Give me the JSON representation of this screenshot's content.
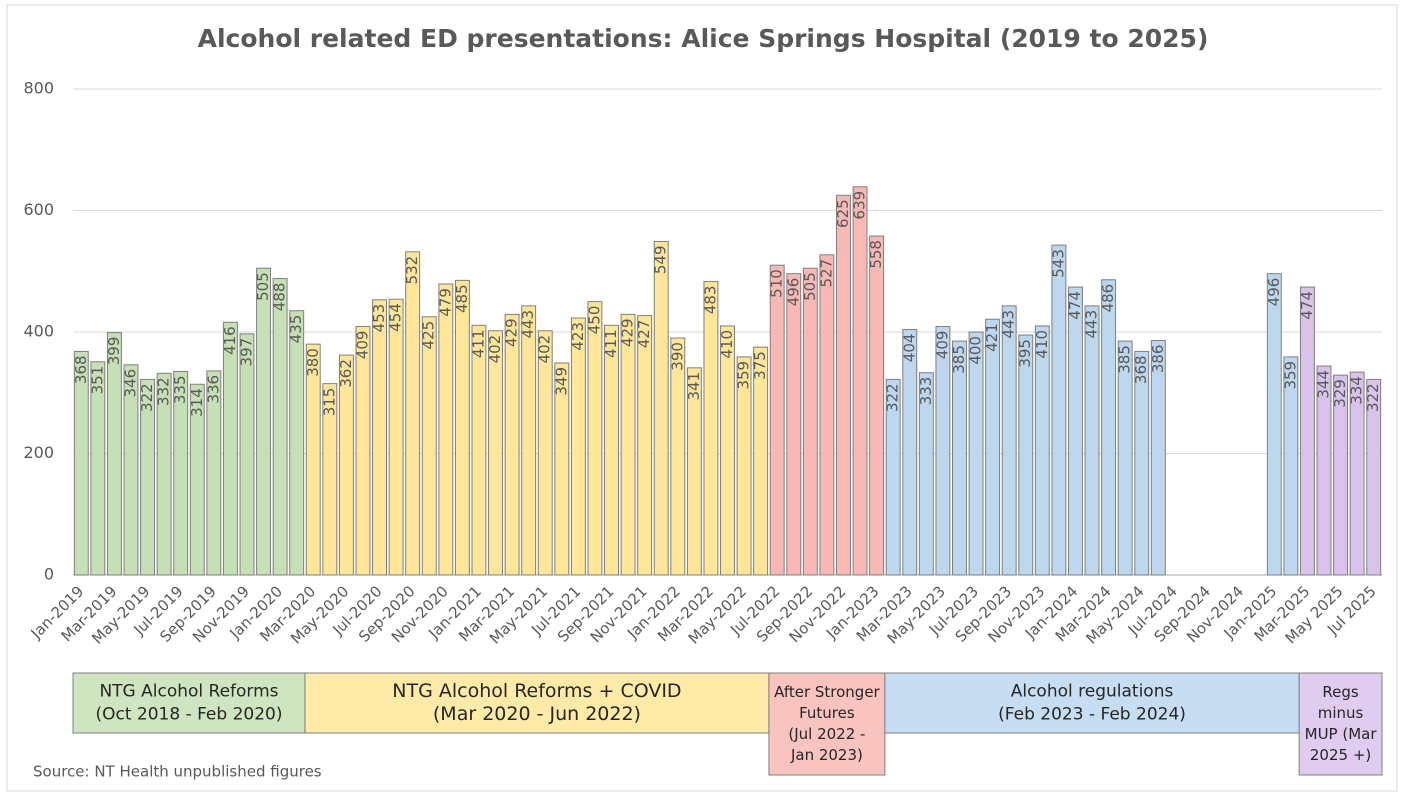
{
  "chart_data": {
    "type": "bar",
    "title": "Alcohol related ED presentations: Alice Springs Hospital (2019 to 2025)",
    "source": "Source: NT Health unpublished figures",
    "categories": [
      "Jan-2019",
      null,
      "Mar-2019",
      null,
      "May-2019",
      null,
      "Jul-2019",
      null,
      "Sep-2019",
      null,
      "Nov-2019",
      null,
      "Jan-2020",
      null,
      "Mar-2020",
      null,
      "May-2020",
      null,
      "Jul-2020",
      null,
      "Sep-2020",
      null,
      "Nov-2020",
      null,
      "Jan-2021",
      null,
      "Mar-2021",
      null,
      "May-2021",
      null,
      "Jul-2021",
      null,
      "Sep-2021",
      null,
      "Nov-2021",
      null,
      "Jan-2022",
      null,
      "Mar-2022",
      null,
      "May-2022",
      null,
      "Jul-2022",
      null,
      "Sep-2022",
      null,
      "Nov-2022",
      null,
      "Jan-2023",
      null,
      "Mar-2023",
      null,
      "May-2023",
      null,
      "Jul-2023",
      null,
      "Sep-2023",
      null,
      "Nov-2023",
      null,
      "Jan-2024",
      null,
      "Mar-2024",
      null,
      "May-2024",
      null,
      "Jul-2024",
      null,
      "Sep-2024",
      null,
      "Nov-2024",
      null,
      "Jan-2025",
      null,
      "Mar-2025",
      null,
      "May 2025",
      null,
      "Jul 2025"
    ],
    "ylim": [
      0,
      800
    ],
    "yticks": [
      0,
      200,
      400,
      600,
      800
    ],
    "grid": true,
    "series": [
      {
        "name_lines": [
          "NTG Alcohol Reforms",
          "(Oct 2018 - Feb 2020)"
        ],
        "color": "#c5e0b4",
        "values": [
          368,
          351,
          399,
          346,
          322,
          332,
          335,
          314,
          336,
          416,
          397,
          505,
          488,
          435,
          null,
          null,
          null,
          null,
          null,
          null,
          null,
          null,
          null,
          null,
          null,
          null,
          null,
          null,
          null,
          null,
          null,
          null,
          null,
          null,
          null,
          null,
          null,
          null,
          null,
          null,
          null,
          null,
          null,
          null,
          null,
          null,
          null,
          null,
          null,
          null,
          null,
          null,
          null,
          null,
          null,
          null,
          null,
          null,
          null,
          null,
          null,
          null,
          null,
          null,
          null,
          null,
          null,
          null,
          null,
          null,
          null,
          null,
          null,
          null,
          null,
          null,
          null,
          null,
          null
        ]
      },
      {
        "name_lines": [
          "NTG Alcohol Reforms + COVID",
          "(Mar 2020 - Jun 2022)"
        ],
        "color": "#ffe699",
        "values": [
          null,
          null,
          null,
          null,
          null,
          null,
          null,
          null,
          null,
          null,
          null,
          null,
          null,
          null,
          380,
          315,
          362,
          409,
          453,
          454,
          532,
          425,
          479,
          485,
          411,
          402,
          429,
          443,
          402,
          349,
          423,
          450,
          411,
          429,
          427,
          549,
          390,
          341,
          483,
          410,
          359,
          375,
          null,
          null,
          null,
          null,
          null,
          null,
          null,
          null,
          null,
          null,
          null,
          null,
          null,
          null,
          null,
          null,
          null,
          null,
          null,
          null,
          null,
          null,
          null,
          null,
          null,
          null,
          null,
          null,
          null,
          null,
          null,
          null,
          null,
          null,
          null,
          null,
          null
        ]
      },
      {
        "name_lines": [
          "After Stronger",
          "Futures",
          "(Jul 2022 -",
          "Jan 2023)"
        ],
        "color": "#f8b9b4",
        "values": [
          null,
          null,
          null,
          null,
          null,
          null,
          null,
          null,
          null,
          null,
          null,
          null,
          null,
          null,
          null,
          null,
          null,
          null,
          null,
          null,
          null,
          null,
          null,
          null,
          null,
          null,
          null,
          null,
          null,
          null,
          null,
          null,
          null,
          null,
          null,
          null,
          null,
          null,
          null,
          null,
          null,
          null,
          510,
          496,
          505,
          527,
          625,
          639,
          558,
          null,
          null,
          null,
          null,
          null,
          null,
          null,
          null,
          null,
          null,
          null,
          null,
          null,
          null,
          null,
          null,
          null,
          null,
          null,
          null,
          null,
          null,
          null,
          null,
          null,
          null,
          null,
          null,
          null,
          null
        ]
      },
      {
        "name_lines": [
          "Alcohol regulations",
          "(Feb 2023 - Feb 2024)"
        ],
        "color": "#bdd7ee",
        "values": [
          null,
          null,
          null,
          null,
          null,
          null,
          null,
          null,
          null,
          null,
          null,
          null,
          null,
          null,
          null,
          null,
          null,
          null,
          null,
          null,
          null,
          null,
          null,
          null,
          null,
          null,
          null,
          null,
          null,
          null,
          null,
          null,
          null,
          null,
          null,
          null,
          null,
          null,
          null,
          null,
          null,
          null,
          null,
          null,
          null,
          null,
          null,
          null,
          null,
          322,
          404,
          333,
          409,
          385,
          400,
          421,
          443,
          395,
          410,
          543,
          474,
          443,
          486,
          385,
          368,
          386,
          null,
          null,
          null,
          null,
          null,
          null,
          496,
          359,
          null,
          null,
          null,
          null,
          null
        ]
      },
      {
        "name_lines": [
          "Regs",
          "minus",
          "MUP (Mar",
          "2025 +)"
        ],
        "color": "#d9c3ec",
        "values": [
          null,
          null,
          null,
          null,
          null,
          null,
          null,
          null,
          null,
          null,
          null,
          null,
          null,
          null,
          null,
          null,
          null,
          null,
          null,
          null,
          null,
          null,
          null,
          null,
          null,
          null,
          null,
          null,
          null,
          null,
          null,
          null,
          null,
          null,
          null,
          null,
          null,
          null,
          null,
          null,
          null,
          null,
          null,
          null,
          null,
          null,
          null,
          null,
          null,
          null,
          null,
          null,
          null,
          null,
          null,
          null,
          null,
          null,
          null,
          null,
          null,
          null,
          null,
          null,
          null,
          null,
          null,
          null,
          null,
          null,
          null,
          null,
          null,
          null,
          474,
          344,
          329,
          334,
          322
        ]
      }
    ]
  }
}
